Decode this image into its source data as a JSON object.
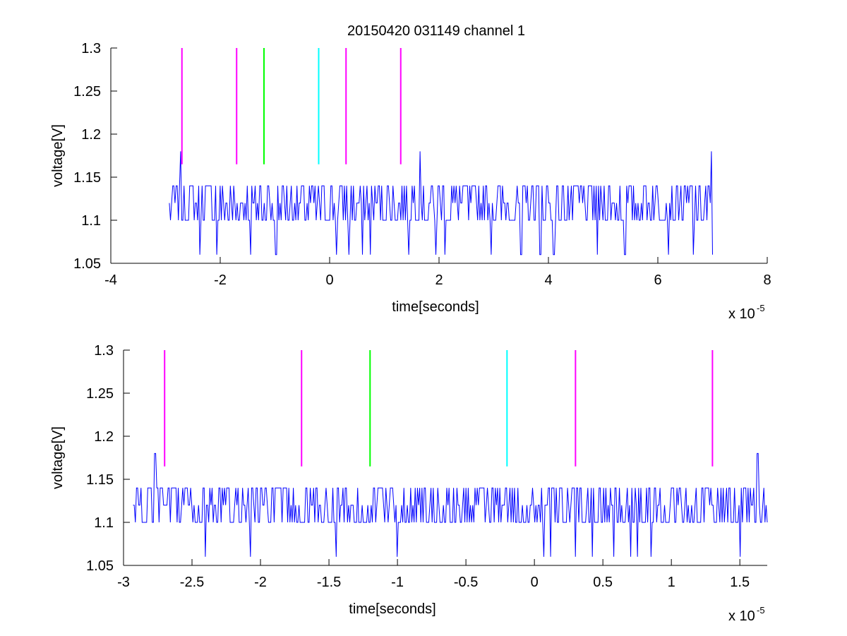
{
  "figure": {
    "title": "20150420 031149 channel 1"
  },
  "chart_data": [
    {
      "type": "line",
      "xlabel": "time[seconds]",
      "ylabel": "voltage[V]",
      "x_exponent_label": "x 10",
      "x_exponent": "-5",
      "xlim": [
        -4,
        8
      ],
      "ylim": [
        1.05,
        1.3
      ],
      "xticks": [
        -4,
        -2,
        0,
        2,
        4,
        6,
        8
      ],
      "xtick_labels": [
        "-4",
        "-2",
        "0",
        "2",
        "4",
        "6",
        "8"
      ],
      "yticks": [
        1.05,
        1.1,
        1.15,
        1.2,
        1.25,
        1.3
      ],
      "ytick_labels": [
        "1.05",
        "1.1",
        "1.15",
        "1.2",
        "1.25",
        "1.3"
      ],
      "grid": false,
      "series": [
        {
          "color": "#0000ff",
          "x_range": [
            -2.93,
            7.0
          ],
          "baseline": 1.1,
          "levels": [
            1.06,
            1.1,
            1.12,
            1.14,
            1.18
          ],
          "spikes": [
            {
              "x": -2.72,
              "y": 1.18
            },
            {
              "x": 1.65,
              "y": 1.18
            },
            {
              "x": 6.98,
              "y": 1.18
            },
            {
              "x": -2.38,
              "y": 1.06
            },
            {
              "x": -2.07,
              "y": 1.06
            },
            {
              "x": -1.45,
              "y": 1.06
            },
            {
              "x": -0.98,
              "y": 1.06
            },
            {
              "x": 0.12,
              "y": 1.06
            },
            {
              "x": 0.35,
              "y": 1.06
            },
            {
              "x": 0.6,
              "y": 1.06
            },
            {
              "x": 0.75,
              "y": 1.06
            },
            {
              "x": 1.45,
              "y": 1.06
            },
            {
              "x": 1.95,
              "y": 1.06
            },
            {
              "x": 2.1,
              "y": 1.06
            },
            {
              "x": 2.95,
              "y": 1.06
            },
            {
              "x": 3.5,
              "y": 1.06
            },
            {
              "x": 3.85,
              "y": 1.06
            },
            {
              "x": 4.1,
              "y": 1.06
            },
            {
              "x": 4.9,
              "y": 1.06
            },
            {
              "x": 5.4,
              "y": 1.06
            },
            {
              "x": 6.2,
              "y": 1.06
            },
            {
              "x": 6.65,
              "y": 1.06
            },
            {
              "x": 7.0,
              "y": 1.06
            }
          ]
        }
      ],
      "markers": [
        {
          "x": -2.7,
          "color": "#ff00ff"
        },
        {
          "x": -1.7,
          "color": "#ff00ff"
        },
        {
          "x": -1.2,
          "color": "#00ff00"
        },
        {
          "x": -0.2,
          "color": "#00ffff"
        },
        {
          "x": 0.3,
          "color": "#ff00ff"
        },
        {
          "x": 1.3,
          "color": "#ff00ff"
        }
      ],
      "marker_y_range": [
        1.165,
        1.3
      ]
    },
    {
      "type": "line",
      "xlabel": "time[seconds]",
      "ylabel": "voltage[V]",
      "x_exponent_label": "x 10",
      "x_exponent": "-5",
      "xlim": [
        -3,
        1.7
      ],
      "ylim": [
        1.05,
        1.3
      ],
      "xticks": [
        -3,
        -2.5,
        -2,
        -1.5,
        -1,
        -0.5,
        0,
        0.5,
        1,
        1.5
      ],
      "xtick_labels": [
        "-3",
        "-2.5",
        "-2",
        "-1.5",
        "-1",
        "-0.5",
        "0",
        "0.5",
        "1",
        "1.5"
      ],
      "yticks": [
        1.05,
        1.1,
        1.15,
        1.2,
        1.25,
        1.3
      ],
      "ytick_labels": [
        "1.05",
        "1.1",
        "1.15",
        "1.2",
        "1.25",
        "1.3"
      ],
      "grid": false,
      "series": [
        {
          "color": "#0000ff",
          "x_range": [
            -2.93,
            1.7
          ],
          "baseline": 1.1,
          "levels": [
            1.06,
            1.1,
            1.12,
            1.14,
            1.18
          ],
          "spikes": [
            {
              "x": -2.77,
              "y": 1.18
            },
            {
              "x": 1.63,
              "y": 1.18
            },
            {
              "x": -2.4,
              "y": 1.06
            },
            {
              "x": -2.07,
              "y": 1.06
            },
            {
              "x": -1.45,
              "y": 1.06
            },
            {
              "x": -1.0,
              "y": 1.06
            },
            {
              "x": 0.07,
              "y": 1.06
            },
            {
              "x": 0.12,
              "y": 1.06
            },
            {
              "x": 0.3,
              "y": 1.06
            },
            {
              "x": 0.42,
              "y": 1.06
            },
            {
              "x": 0.58,
              "y": 1.06
            },
            {
              "x": 0.7,
              "y": 1.06
            },
            {
              "x": 0.75,
              "y": 1.06
            },
            {
              "x": 0.85,
              "y": 1.06
            },
            {
              "x": 1.5,
              "y": 1.06
            }
          ]
        }
      ],
      "markers": [
        {
          "x": -2.7,
          "color": "#ff00ff"
        },
        {
          "x": -1.7,
          "color": "#ff00ff"
        },
        {
          "x": -1.2,
          "color": "#00ff00"
        },
        {
          "x": -0.2,
          "color": "#00ffff"
        },
        {
          "x": 0.3,
          "color": "#ff00ff"
        },
        {
          "x": 1.3,
          "color": "#ff00ff"
        }
      ],
      "marker_y_range": [
        1.165,
        1.3
      ]
    }
  ]
}
